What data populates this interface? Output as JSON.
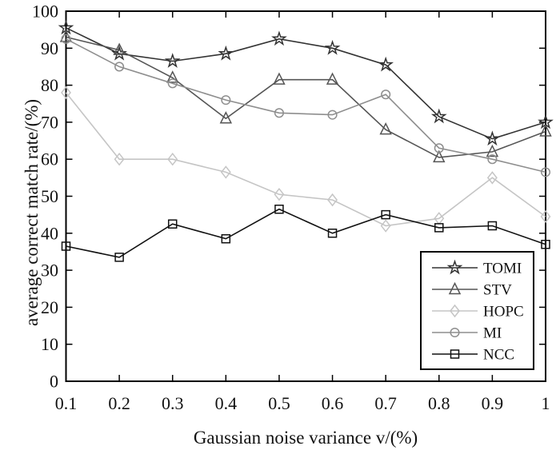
{
  "figure": {
    "background": "#ffffff",
    "frame_color": "#000000",
    "text_color": "#111111"
  },
  "chart_data": {
    "type": "line",
    "title": "",
    "xlabel": "Gaussian noise variance v/(%)",
    "ylabel": "average correct match rate/(%)",
    "x": [
      0.1,
      0.2,
      0.3,
      0.4,
      0.5,
      0.6,
      0.7,
      0.8,
      0.9,
      1
    ],
    "x_tick_labels": [
      "0.1",
      "0.2",
      "0.3",
      "0.4",
      "0.5",
      "0.6",
      "0.7",
      "0.8",
      "0.9",
      "1"
    ],
    "xlim": [
      0.1,
      1
    ],
    "y_ticks": [
      0,
      10,
      20,
      30,
      40,
      50,
      60,
      70,
      80,
      90,
      100
    ],
    "ylim": [
      0,
      100
    ],
    "grid": false,
    "legend_position": "inside-bottom-right",
    "series": [
      {
        "name": "TOMI",
        "marker": "star",
        "color": "#333333",
        "values": [
          95.5,
          88.5,
          86.5,
          88.5,
          92.5,
          90,
          85.5,
          71.5,
          65.5,
          70
        ]
      },
      {
        "name": "STV",
        "marker": "triangle",
        "color": "#555555",
        "values": [
          93,
          89.5,
          82,
          71,
          81.5,
          81.5,
          68,
          60.5,
          62,
          67.5
        ]
      },
      {
        "name": "HOPC",
        "marker": "diamond",
        "color": "#c5c5c5",
        "values": [
          78,
          60,
          60,
          56.5,
          50.5,
          49,
          42,
          44,
          55,
          44.5
        ]
      },
      {
        "name": "MI",
        "marker": "circle",
        "color": "#8e8e8e",
        "values": [
          92.5,
          85,
          80.5,
          76,
          72.5,
          72,
          77.5,
          63,
          60,
          56.5
        ]
      },
      {
        "name": "NCC",
        "marker": "square",
        "color": "#111111",
        "values": [
          36.5,
          33.5,
          42.5,
          38.5,
          46.5,
          40,
          45,
          41.5,
          42,
          37
        ]
      }
    ]
  }
}
